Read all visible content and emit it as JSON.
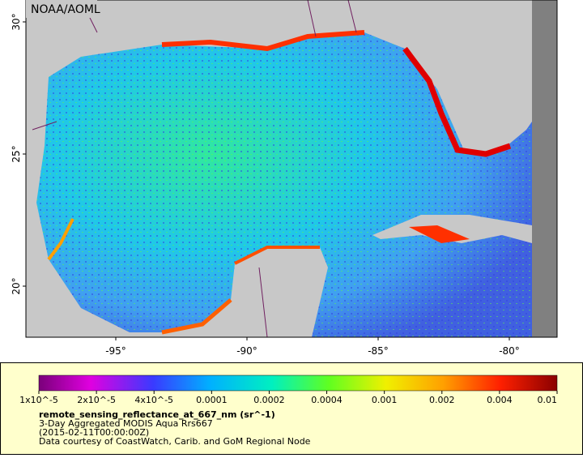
{
  "map": {
    "title": "NOAA/AOML",
    "lat_labels": [
      "20°",
      "25°",
      "30°"
    ],
    "lon_labels": [
      "-95°",
      "-90°",
      "-85°",
      "-80°"
    ]
  },
  "colorbar": {
    "labels": [
      "1x10^-5",
      "2x10^-5",
      "4x10^-5",
      "0.0001",
      "0.0002",
      "0.0004",
      "0.001",
      "0.002",
      "0.004",
      "0.01"
    ]
  },
  "legend": {
    "variable": "remote_sensing_reflectance_at_667_nm (sr^-1)",
    "dataset": "3-Day Aggregated MODIS Aqua Rrs667",
    "time": "(2015-02-11T00:00:00Z)",
    "credit": "Data courtesy of CoastWatch, Carib. and GoM Regional Node"
  }
}
